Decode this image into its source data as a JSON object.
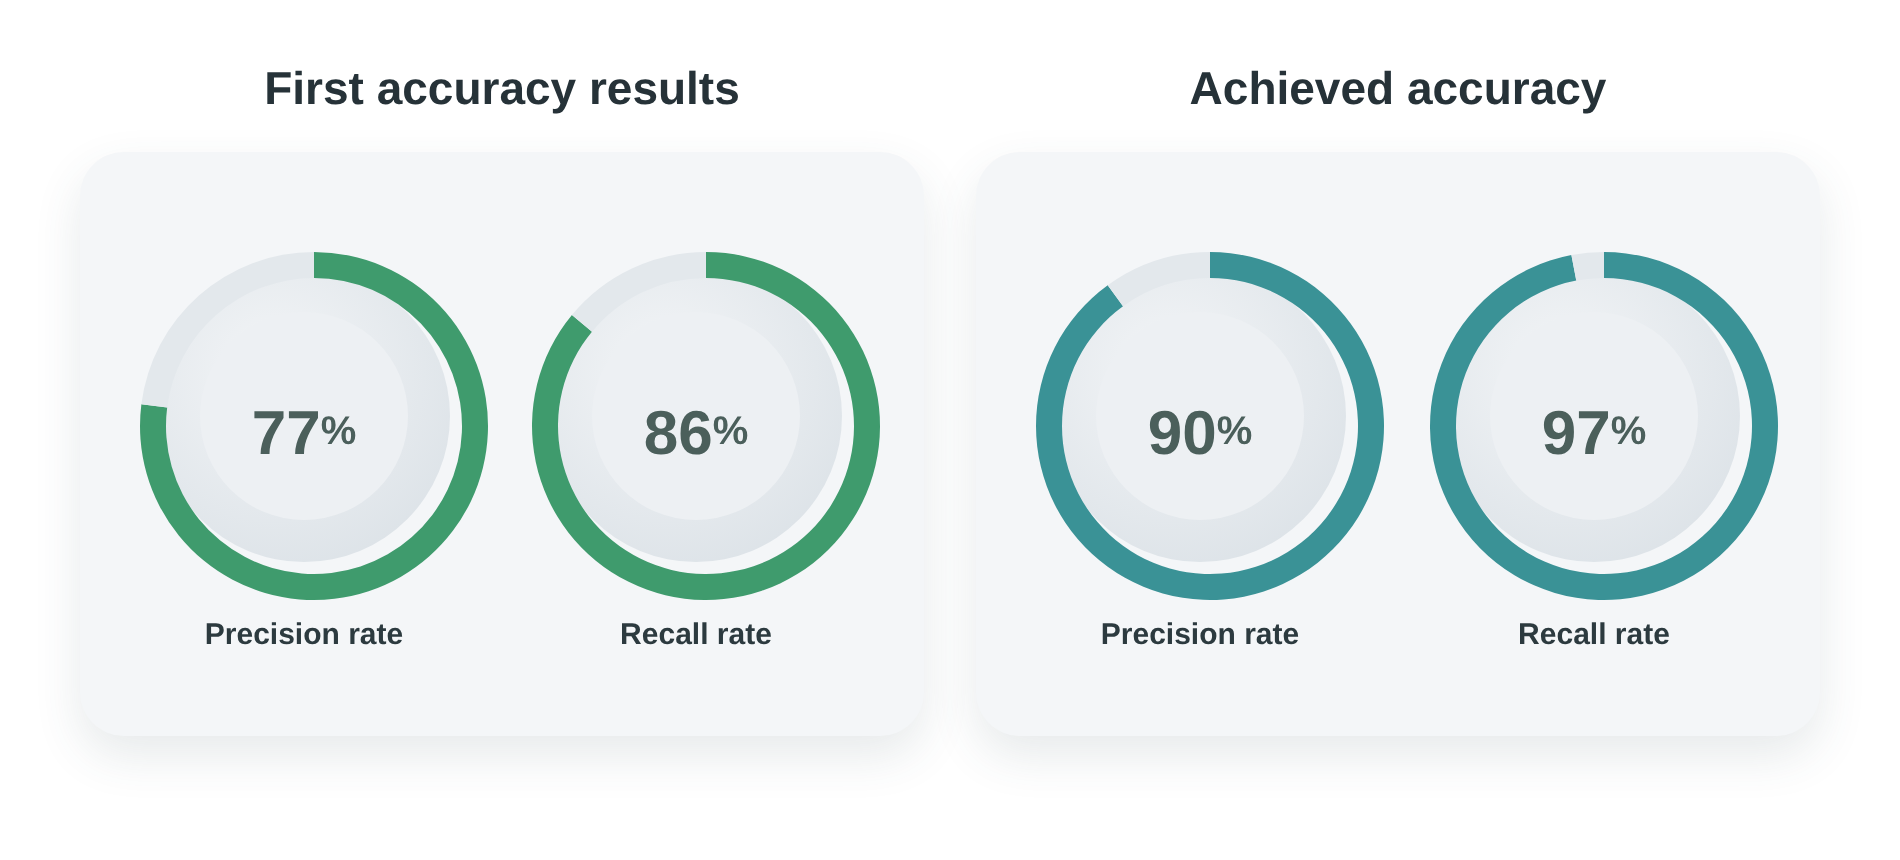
{
  "chart_data": [
    {
      "type": "donut",
      "title": "First accuracy results",
      "categories": [
        "Precision rate",
        null
      ],
      "values": [
        77,
        23
      ],
      "colors": [
        "#3f9b6d",
        "#e3e8ec"
      ],
      "value_labels": [
        "77%",
        null
      ]
    },
    {
      "type": "donut",
      "categories": [
        "Recall rate",
        null
      ],
      "values": [
        86,
        14
      ],
      "colors": [
        "#3f9b6d",
        "#e3e8ec"
      ],
      "value_labels": [
        "86%",
        null
      ]
    },
    {
      "type": "donut",
      "title": "Achieved accuracy",
      "categories": [
        "Precision rate",
        null
      ],
      "values": [
        90,
        10
      ],
      "colors": [
        "#3a9296",
        "#e3e8ec"
      ],
      "value_labels": [
        "90%",
        null
      ]
    },
    {
      "type": "donut",
      "categories": [
        "Recall rate",
        null
      ],
      "values": [
        97,
        3
      ],
      "colors": [
        "#3a9296",
        "#e3e8ec"
      ],
      "value_labels": [
        "97%",
        null
      ]
    }
  ]
}
